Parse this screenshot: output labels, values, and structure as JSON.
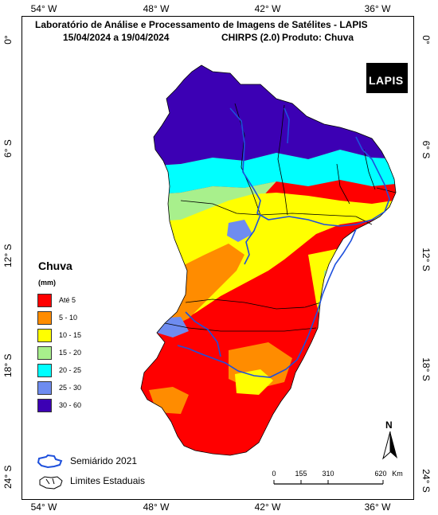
{
  "map": {
    "title_line1": "Laboratório de Análise e Processamento de Imagens de Satélites - LAPIS",
    "title_line2_date": "15/04/2024  a  19/04/2024",
    "title_line2_product": "CHIRPS (2.0)",
    "title_line2_variable": "Produto: Chuva",
    "logo_text": "LAPIS"
  },
  "axes": {
    "longitude_top": [
      "54° W",
      "48° W",
      "42° W",
      "36° W"
    ],
    "longitude_bottom": [
      "54° W",
      "48° W",
      "42° W",
      "36° W"
    ],
    "latitude_left": [
      "0°",
      "6° S",
      "12° S",
      "18° S",
      "24° S"
    ],
    "latitude_right": [
      "0°",
      "6° S",
      "12° S",
      "18° S",
      "24° S"
    ]
  },
  "legend": {
    "title": "Chuva",
    "unit": "(mm)",
    "classes": [
      {
        "label": "Até 5",
        "color": "#ff0000"
      },
      {
        "label": "5 - 10",
        "color": "#ff8c00"
      },
      {
        "label": "10 - 15",
        "color": "#ffff00"
      },
      {
        "label": "15 - 20",
        "color": "#a8f08c"
      },
      {
        "label": "20 - 25",
        "color": "#00ffff"
      },
      {
        "label": "25 - 30",
        "color": "#6e8cf0"
      },
      {
        "label": "30 - 60",
        "color": "#3c00b4"
      }
    ],
    "semiarid_label": "Semiárido 2021",
    "states_label": "Limites Estaduais"
  },
  "scale_bar": {
    "ticks": [
      "0",
      "155",
      "310",
      "620"
    ],
    "unit": "Km"
  },
  "north_arrow": {
    "label": "N"
  },
  "colors": {
    "semiarid_boundary": "#1e50dc",
    "state_boundary": "#000000"
  }
}
